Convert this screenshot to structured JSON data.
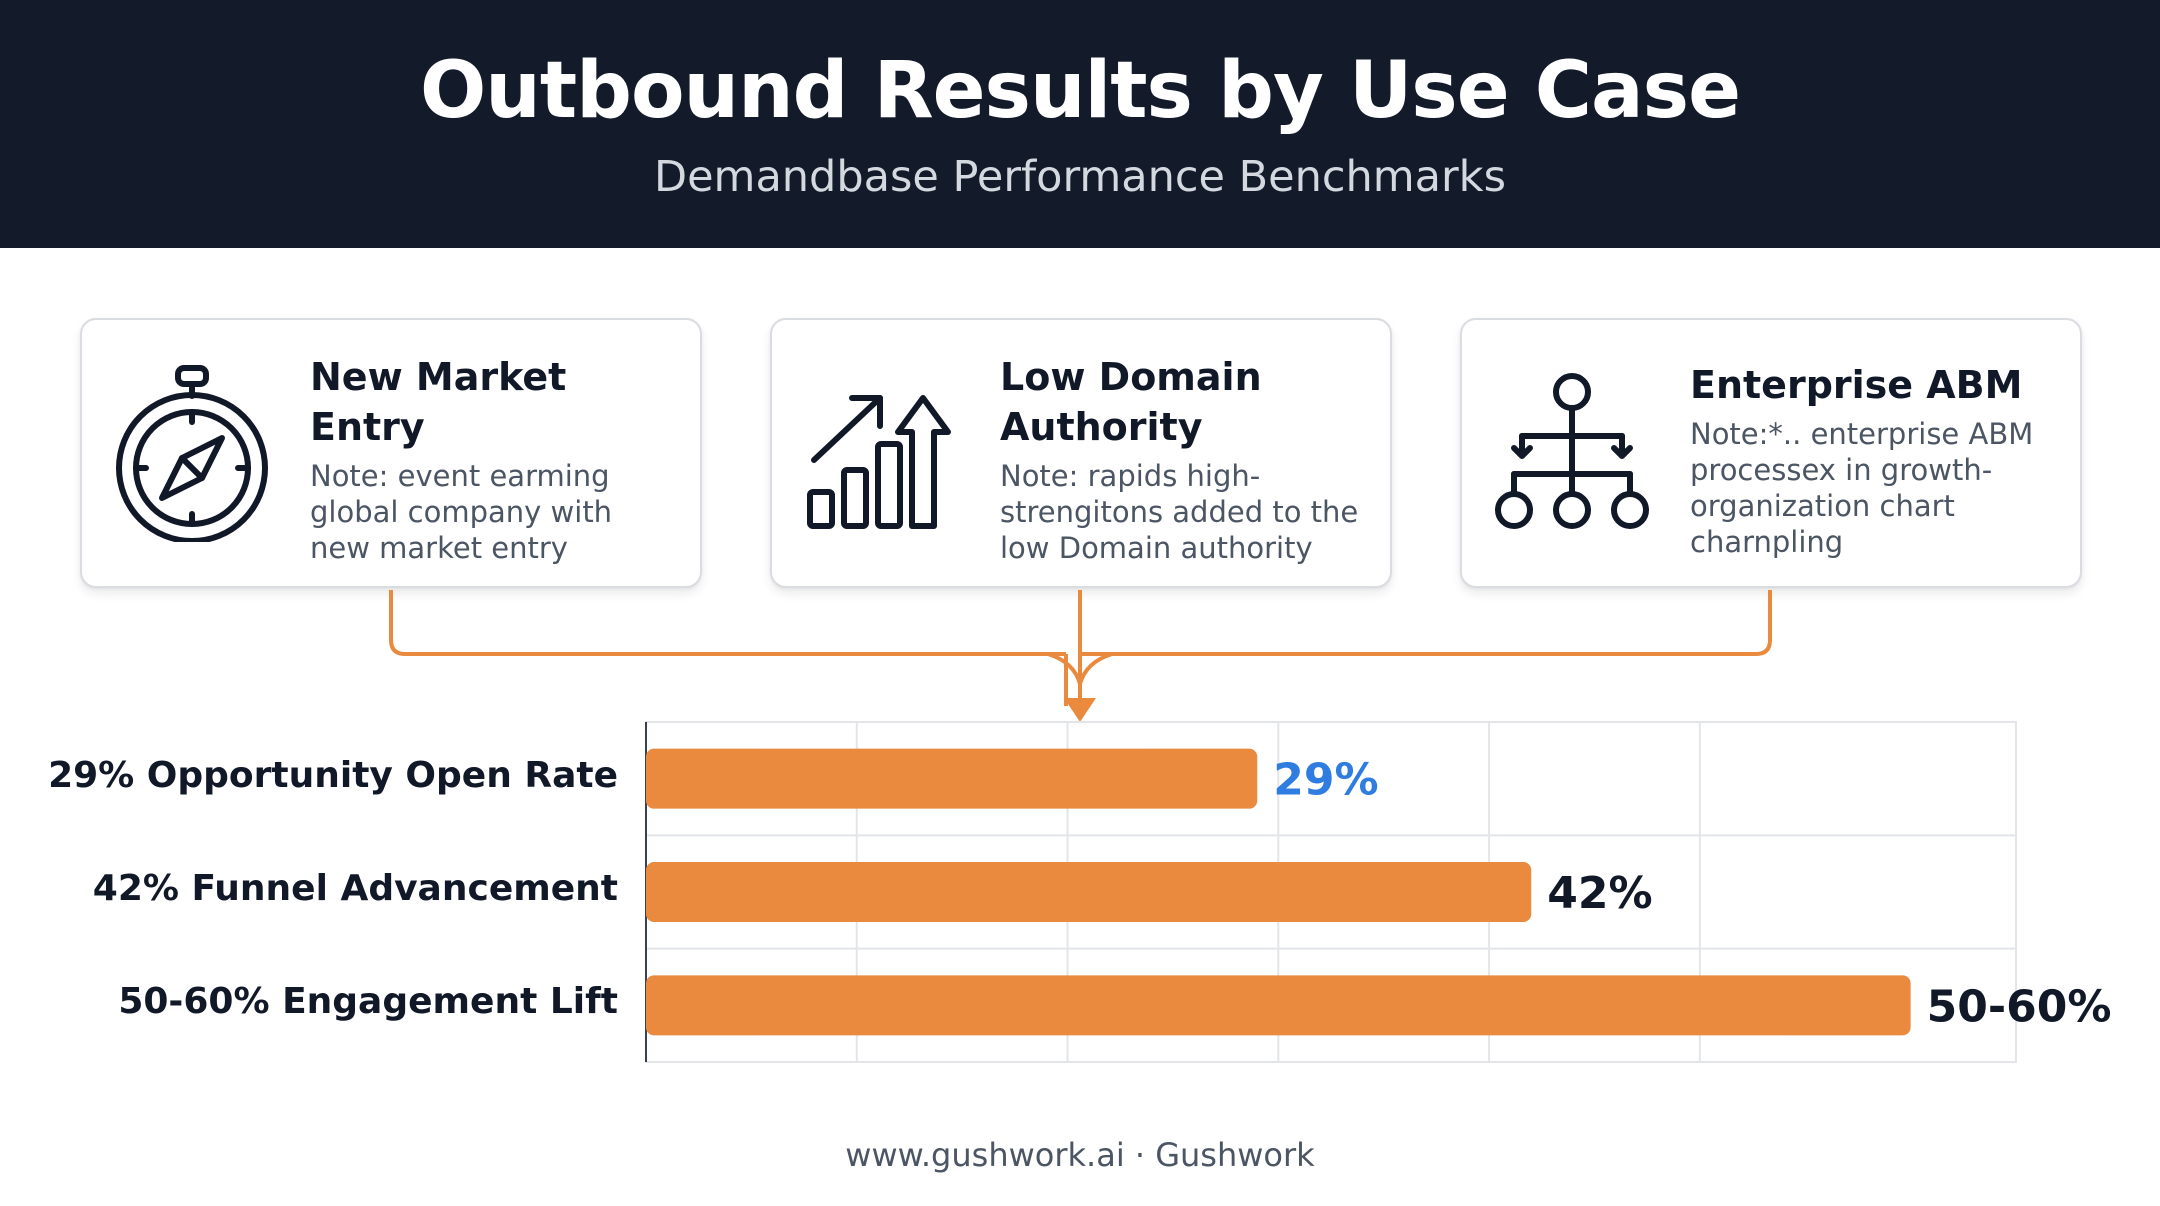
{
  "header": {
    "title": "Outbound Results by Use Case",
    "subtitle": "Demandbase Performance Benchmarks"
  },
  "cards": [
    {
      "title": "New Market Entry",
      "note": "Note: event earming global company with new market entry",
      "icon": "compass-icon"
    },
    {
      "title": "Low Domain Authority",
      "note": "Note: rapids high-strengitons added to the low Domain authority",
      "icon": "growth-chart-icon"
    },
    {
      "title": "Enterprise ABM",
      "note": "Note:*.. enterprise ABM processex in growth-organization chart charnpling",
      "icon": "org-chart-icon"
    }
  ],
  "colors": {
    "header_bg": "#131b2b",
    "accent_orange": "#ea8a3f",
    "highlight_blue": "#2f7de1"
  },
  "chart_data": {
    "type": "bar",
    "orientation": "horizontal",
    "categories": [
      "29% Opportunity Open Rate",
      "42% Funnel Advancement",
      "50-60% Engagement Lift"
    ],
    "values": [
      29,
      42,
      60
    ],
    "data_labels": [
      "29%",
      "42%",
      "50-60%"
    ],
    "xlim": [
      0,
      65
    ],
    "grid": true
  },
  "footer": {
    "text": "www.gushwork.ai · Gushwork"
  }
}
